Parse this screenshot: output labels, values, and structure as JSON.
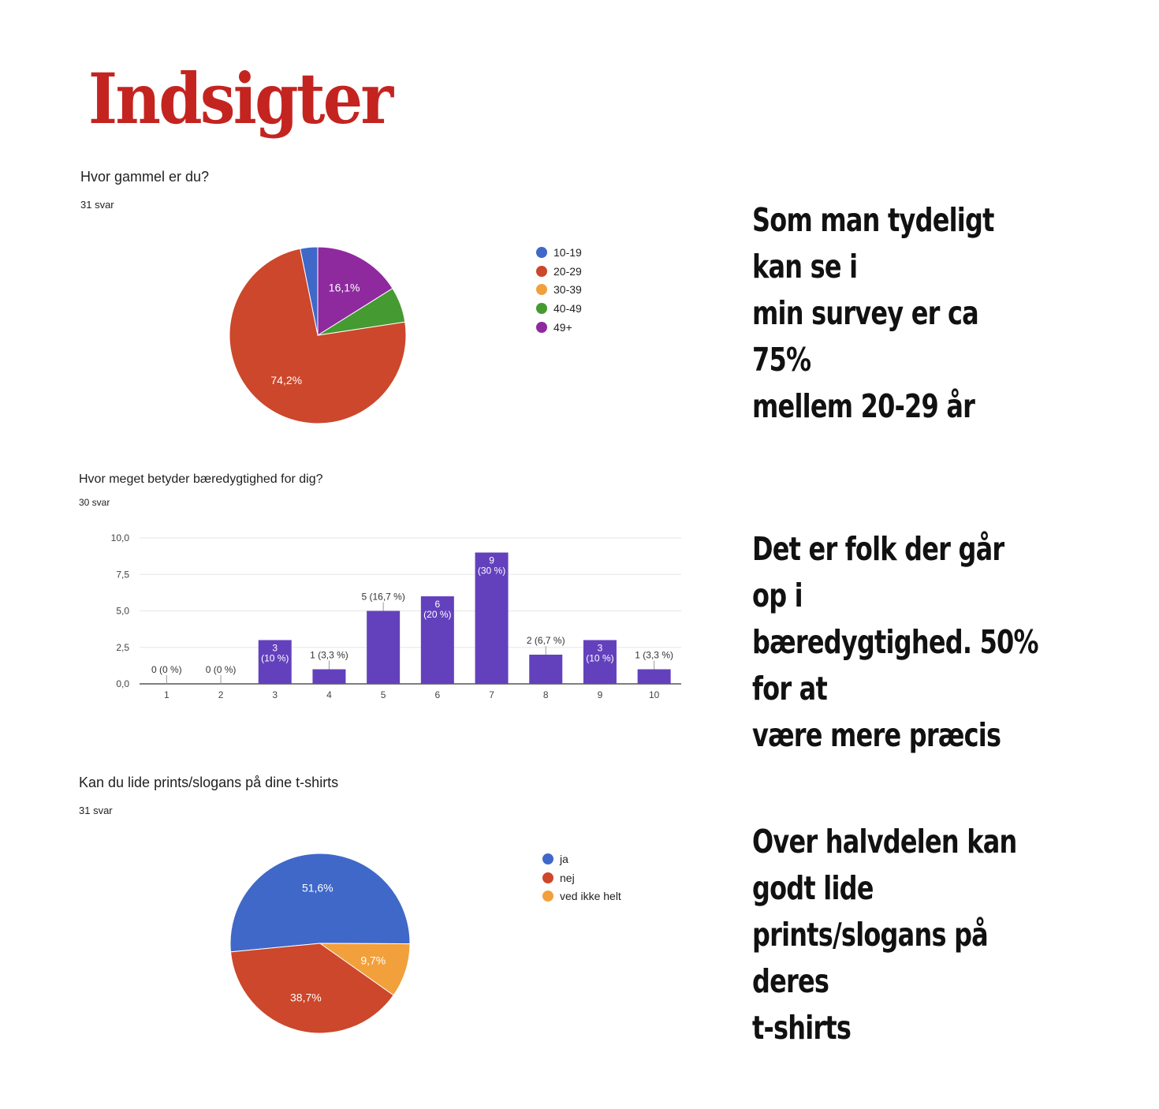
{
  "page": {
    "title": "Indsigter"
  },
  "colors": {
    "title_red": "#c42420",
    "blue": "#3f68c8",
    "red": "#cc472b",
    "orange": "#f2a03c",
    "green": "#459a32",
    "purple": "#8e2a9e",
    "bar": "#6341bd"
  },
  "q1": {
    "title": "Hvor gammel er du?",
    "count": "31 svar"
  },
  "q2": {
    "title": "Hvor meget betyder bæredygtighed for dig?",
    "count": "30 svar"
  },
  "q3": {
    "title": "Kan du lide prints/slogans på dine t-shirts",
    "count": "31 svar"
  },
  "notes": {
    "n1": [
      "Som man tydeligt kan se i",
      "min survey er ca 75%",
      "mellem 20-29 år"
    ],
    "n2": [
      "Det er folk der går  op i",
      "bæredygtighed. 50% for at",
      "være mere præcis"
    ],
    "n3": [
      "Over halvdelen kan godt lide",
      "prints/slogans på deres",
      "t-shirts"
    ]
  },
  "chart_data": [
    {
      "type": "pie",
      "title": "Hvor gammel er du?",
      "legend_position": "right",
      "slices": [
        {
          "label": "10-19",
          "value": 3.2,
          "color": "#3f68c8",
          "data_label": ""
        },
        {
          "label": "20-29",
          "value": 74.2,
          "color": "#cc472b",
          "data_label": "74,2%"
        },
        {
          "label": "30-39",
          "value": 0,
          "color": "#f2a03c",
          "data_label": ""
        },
        {
          "label": "40-49",
          "value": 6.5,
          "color": "#459a32",
          "data_label": ""
        },
        {
          "label": "49+",
          "value": 16.1,
          "color": "#8e2a9e",
          "data_label": "16,1%"
        }
      ]
    },
    {
      "type": "bar",
      "title": "Hvor meget betyder bæredygtighed for dig?",
      "categories": [
        "1",
        "2",
        "3",
        "4",
        "5",
        "6",
        "7",
        "8",
        "9",
        "10"
      ],
      "values": [
        0,
        0,
        3,
        1,
        5,
        6,
        9,
        2,
        3,
        1
      ],
      "data_labels": [
        [
          "0 (0 %)"
        ],
        [
          "0 (0 %)"
        ],
        [
          "3",
          "(10 %)"
        ],
        [
          "1 (3,3 %)"
        ],
        [
          "5 (16,7 %)"
        ],
        [
          "6",
          "(20 %)"
        ],
        [
          "9",
          "(30 %)"
        ],
        [
          "2 (6,7 %)"
        ],
        [
          "3",
          "(10 %)"
        ],
        [
          "1 (3,3 %)"
        ]
      ],
      "y_ticks": [
        "0,0",
        "2,5",
        "5,0",
        "7,5",
        "10,0"
      ],
      "ylim": [
        0,
        10
      ],
      "grid": true,
      "color": "#6341bd"
    },
    {
      "type": "pie",
      "title": "Kan du lide prints/slogans på dine t-shirts",
      "legend_position": "right",
      "slices": [
        {
          "label": "ja",
          "value": 51.6,
          "color": "#3f68c8",
          "data_label": "51,6%"
        },
        {
          "label": "nej",
          "value": 38.7,
          "color": "#cc472b",
          "data_label": "38,7%"
        },
        {
          "label": "ved ikke helt",
          "value": 9.7,
          "color": "#f2a03c",
          "data_label": "9,7%"
        }
      ]
    }
  ]
}
